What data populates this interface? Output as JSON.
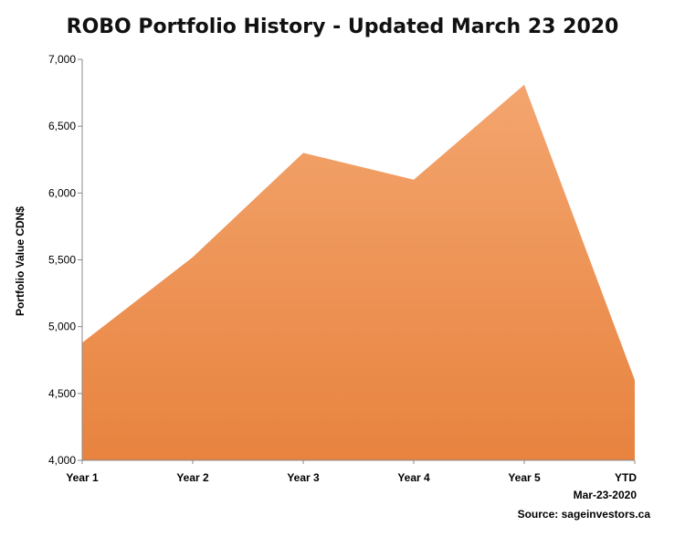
{
  "chart_data": {
    "type": "area",
    "title": "ROBO Portfolio History - Updated March 23 2020",
    "xlabel": "",
    "ylabel": "Portfolio Value CDN$",
    "categories": [
      {
        "line1": "Year 1",
        "line2": ""
      },
      {
        "line1": "Year 2",
        "line2": ""
      },
      {
        "line1": "Year 3",
        "line2": ""
      },
      {
        "line1": "Year 4",
        "line2": ""
      },
      {
        "line1": "Year 5",
        "line2": ""
      },
      {
        "line1": "YTD",
        "line2": "Mar-23-2020"
      }
    ],
    "values": [
      4880,
      5520,
      6300,
      6100,
      6810,
      4600
    ],
    "ylim": [
      4000,
      7000
    ],
    "yticks": [
      "4,000",
      "4,500",
      "5,000",
      "5,500",
      "6,000",
      "6,500",
      "7,000"
    ],
    "ytick_values": [
      4000,
      4500,
      5000,
      5500,
      6000,
      6500,
      7000
    ],
    "grid": false,
    "colors": {
      "fill_top": "#f3a56e",
      "fill_bottom": "#e8833f",
      "axis": "#888888"
    },
    "source": "Source: sageinvestors.ca"
  }
}
